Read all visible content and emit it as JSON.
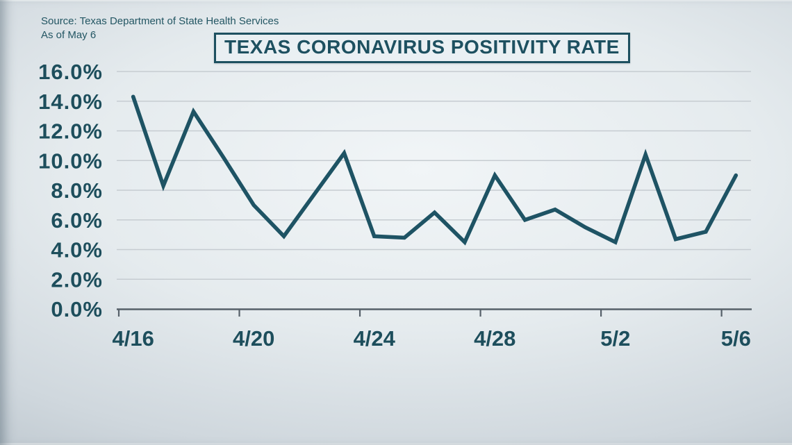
{
  "source": {
    "line1": "Source: Texas Department of State Health Services",
    "line2": "As of May 6"
  },
  "title": "TEXAS CORONAVIRUS POSITIVITY RATE",
  "colors": {
    "line": "#1e5364",
    "label_text": "#1d4e5c",
    "title_text": "#1d5060",
    "axis": "#566069",
    "gridline": "#c6ccd1"
  },
  "chart_data": {
    "type": "line",
    "title": "TEXAS CORONAVIRUS POSITIVITY RATE",
    "xlabel": "",
    "ylabel": "",
    "unit": "%",
    "ylim": [
      0,
      16
    ],
    "y_step": 2,
    "grid": "horizontal",
    "legend": "none",
    "categories": [
      "4/16",
      "4/17",
      "4/18",
      "4/19",
      "4/20",
      "4/21",
      "4/22",
      "4/23",
      "4/24",
      "4/25",
      "4/26",
      "4/27",
      "4/28",
      "4/29",
      "4/30",
      "5/1",
      "5/2",
      "5/3",
      "5/4",
      "5/5",
      "5/6"
    ],
    "values": [
      14.3,
      8.3,
      13.3,
      10.2,
      7.0,
      4.9,
      7.7,
      10.5,
      4.9,
      4.8,
      6.5,
      4.5,
      9.0,
      6.0,
      6.7,
      5.5,
      4.5,
      10.4,
      4.7,
      5.2,
      9.0
    ],
    "x_tick_labels": [
      "4/16",
      "4/20",
      "4/24",
      "4/28",
      "5/2",
      "5/6"
    ],
    "y_tick_labels": [
      "0.0%",
      "2.0%",
      "4.0%",
      "6.0%",
      "8.0%",
      "10.0%",
      "12.0%",
      "14.0%",
      "16.0%"
    ]
  }
}
